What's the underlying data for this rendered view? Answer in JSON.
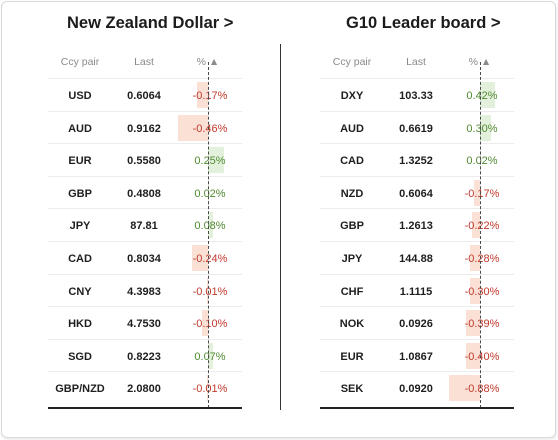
{
  "left": {
    "title": "New Zealand Dollar >",
    "headers": {
      "pair": "Ccy pair",
      "last": "Last",
      "pct": "% ▲"
    },
    "rows": [
      {
        "pair": "USD",
        "last": "0.6064",
        "pct": "-0.17%",
        "value": -0.17
      },
      {
        "pair": "AUD",
        "last": "0.9162",
        "pct": "-0.46%",
        "value": -0.46
      },
      {
        "pair": "EUR",
        "last": "0.5580",
        "pct": "0.25%",
        "value": 0.25
      },
      {
        "pair": "GBP",
        "last": "0.4808",
        "pct": "0.02%",
        "value": 0.02
      },
      {
        "pair": "JPY",
        "last": "87.81",
        "pct": "0.08%",
        "value": 0.08
      },
      {
        "pair": "CAD",
        "last": "0.8034",
        "pct": "-0.24%",
        "value": -0.24
      },
      {
        "pair": "CNY",
        "last": "4.3983",
        "pct": "-0.01%",
        "value": -0.01
      },
      {
        "pair": "HKD",
        "last": "4.7530",
        "pct": "-0.10%",
        "value": -0.1
      },
      {
        "pair": "SGD",
        "last": "0.8223",
        "pct": "0.07%",
        "value": 0.07
      },
      {
        "pair": "GBP/NZD",
        "last": "2.0800",
        "pct": "-0.01%",
        "value": -0.01
      }
    ]
  },
  "right": {
    "title": "G10 Leader board >",
    "headers": {
      "pair": "Ccy pair",
      "last": "Last",
      "pct": "% ▲"
    },
    "rows": [
      {
        "pair": "DXY",
        "last": "103.33",
        "pct": "0.42%",
        "value": 0.42
      },
      {
        "pair": "AUD",
        "last": "0.6619",
        "pct": "0.30%",
        "value": 0.3
      },
      {
        "pair": "CAD",
        "last": "1.3252",
        "pct": "0.02%",
        "value": 0.02
      },
      {
        "pair": "NZD",
        "last": "0.6064",
        "pct": "-0.17%",
        "value": -0.17
      },
      {
        "pair": "GBP",
        "last": "1.2613",
        "pct": "-0.22%",
        "value": -0.22
      },
      {
        "pair": "JPY",
        "last": "144.88",
        "pct": "-0.28%",
        "value": -0.28
      },
      {
        "pair": "CHF",
        "last": "1.1115",
        "pct": "-0.30%",
        "value": -0.3
      },
      {
        "pair": "NOK",
        "last": "0.0926",
        "pct": "-0.39%",
        "value": -0.39
      },
      {
        "pair": "EUR",
        "last": "1.0867",
        "pct": "-0.40%",
        "value": -0.4
      },
      {
        "pair": "SEK",
        "last": "0.0920",
        "pct": "-0.88%",
        "value": -0.88
      }
    ]
  },
  "colors": {
    "negative_text": "#c0392b",
    "positive_text": "#4f8a2f",
    "negative_fill": "#fbe0d6",
    "positive_fill": "#e3f1dc"
  }
}
